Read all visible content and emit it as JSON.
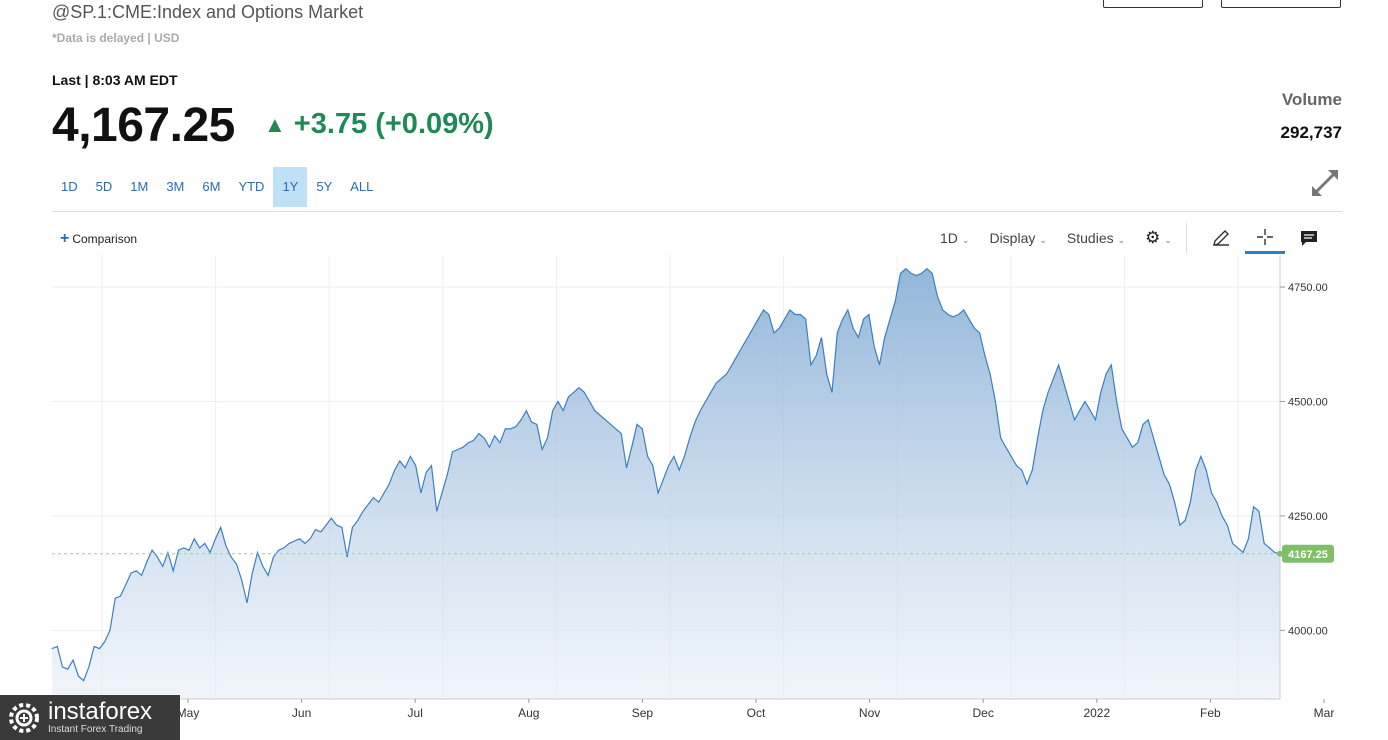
{
  "header": {
    "title": "@SP.1:CME:Index and Options Market",
    "delay_note": "*Data is delayed | USD",
    "last_line": "Last | 8:03 AM EDT",
    "price": "4,167.25",
    "change": "+3.75 (+0.09%)",
    "change_color": "#1f8a55"
  },
  "volume": {
    "label": "Volume",
    "value": "292,737"
  },
  "ranges": [
    "1D",
    "5D",
    "1M",
    "3M",
    "6M",
    "YTD",
    "1Y",
    "5Y",
    "ALL"
  ],
  "active_range": "1Y",
  "toolbar": {
    "comparison_label": "Comparison",
    "interval_label": "1D",
    "display_label": "Display",
    "studies_label": "Studies",
    "icons": [
      "gear-icon",
      "pencil-icon",
      "crosshair-icon",
      "comment-icon",
      "expand-icon"
    ]
  },
  "watermark": {
    "brand": "instaforex",
    "tagline": "Instant Forex Trading"
  },
  "chart_data": {
    "type": "area",
    "x_labels": [
      "May",
      "Jun",
      "Jul",
      "Aug",
      "Sep",
      "Oct",
      "Nov",
      "Dec",
      "2022",
      "Feb",
      "Mar"
    ],
    "y_ticks": [
      "4750.00",
      "4500.00",
      "4250.00",
      "4000.00"
    ],
    "ylim": [
      3850,
      4820
    ],
    "last_value": 4167.25,
    "last_label": "4167.25",
    "line_color": "#3c7fbf",
    "last_label_color": "#7fbf68",
    "grid": true,
    "series": [
      {
        "values": [
          3960,
          3965,
          3920,
          3915,
          3935,
          3900,
          3890,
          3920,
          3965,
          3960,
          3975,
          4000,
          4070,
          4075,
          4100,
          4125,
          4130,
          4120,
          4150,
          4175,
          4160,
          4140,
          4170,
          4130,
          4175,
          4180,
          4175,
          4200,
          4180,
          4190,
          4170,
          4200,
          4225,
          4185,
          4160,
          4145,
          4110,
          4060,
          4125,
          4170,
          4140,
          4120,
          4160,
          4175,
          4180,
          4190,
          4195,
          4200,
          4190,
          4200,
          4220,
          4215,
          4230,
          4245,
          4230,
          4225,
          4160,
          4225,
          4240,
          4260,
          4275,
          4290,
          4280,
          4300,
          4320,
          4350,
          4370,
          4355,
          4380,
          4360,
          4300,
          4345,
          4360,
          4260,
          4300,
          4340,
          4390,
          4395,
          4400,
          4410,
          4415,
          4430,
          4420,
          4400,
          4425,
          4410,
          4440,
          4440,
          4445,
          4460,
          4480,
          4455,
          4450,
          4395,
          4420,
          4480,
          4500,
          4480,
          4510,
          4520,
          4530,
          4520,
          4500,
          4480,
          4470,
          4460,
          4450,
          4440,
          4430,
          4355,
          4400,
          4450,
          4440,
          4380,
          4360,
          4300,
          4330,
          4360,
          4380,
          4350,
          4380,
          4420,
          4455,
          4480,
          4500,
          4520,
          4540,
          4550,
          4560,
          4580,
          4600,
          4620,
          4640,
          4660,
          4680,
          4700,
          4690,
          4650,
          4660,
          4680,
          4700,
          4690,
          4690,
          4680,
          4580,
          4600,
          4640,
          4560,
          4520,
          4650,
          4680,
          4700,
          4660,
          4640,
          4680,
          4690,
          4620,
          4580,
          4640,
          4680,
          4720,
          4780,
          4790,
          4780,
          4775,
          4780,
          4790,
          4780,
          4730,
          4700,
          4690,
          4685,
          4690,
          4700,
          4680,
          4660,
          4650,
          4600,
          4560,
          4500,
          4420,
          4400,
          4380,
          4360,
          4350,
          4320,
          4350,
          4420,
          4480,
          4520,
          4550,
          4580,
          4540,
          4500,
          4460,
          4480,
          4500,
          4480,
          4460,
          4520,
          4560,
          4580,
          4500,
          4440,
          4420,
          4400,
          4410,
          4450,
          4460,
          4420,
          4380,
          4340,
          4320,
          4280,
          4230,
          4240,
          4280,
          4350,
          4380,
          4350,
          4300,
          4280,
          4250,
          4230,
          4190,
          4180,
          4170,
          4200,
          4270,
          4260,
          4190,
          4180,
          4170,
          4167.25
        ]
      }
    ]
  }
}
